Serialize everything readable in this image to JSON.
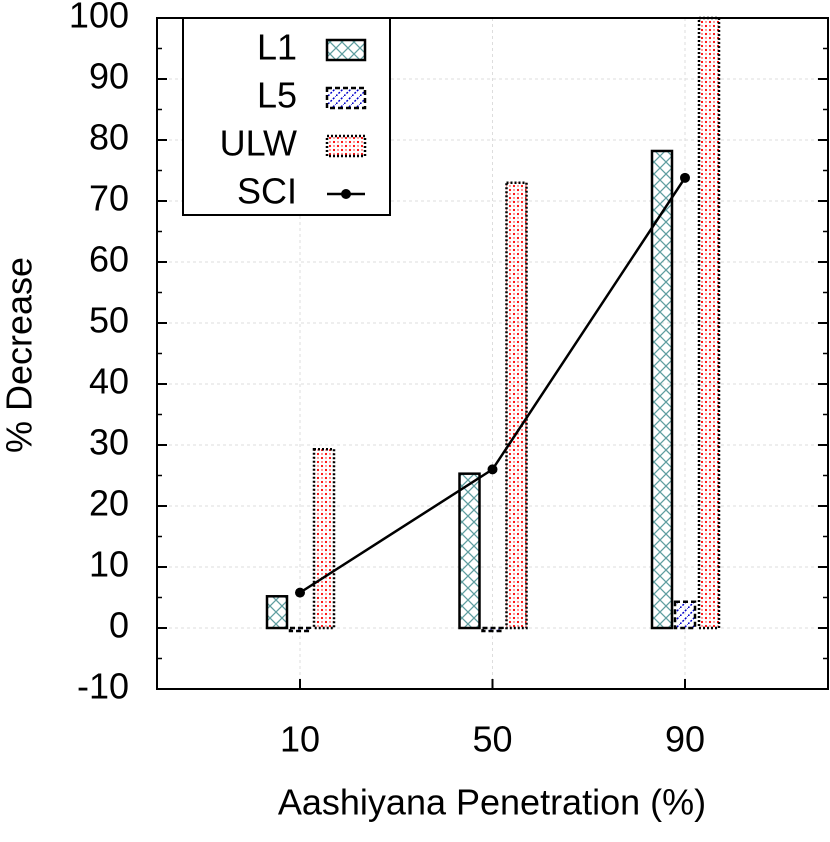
{
  "chart_data": {
    "type": "bar",
    "x_label": "Aashiyana Penetration (%)",
    "y_label": "% Decrease",
    "categories": [
      "10",
      "50",
      "90"
    ],
    "series": [
      {
        "name": "L1",
        "color": "#5f9ea0",
        "values": [
          5.2,
          25.3,
          78.2
        ]
      },
      {
        "name": "L5",
        "color": "#0000cc",
        "values": [
          -0.5,
          -0.5,
          4.3
        ]
      },
      {
        "name": "ULW",
        "color": "#ff0000",
        "values": [
          29.3,
          73,
          100
        ]
      },
      {
        "name": "SCI",
        "type": "line",
        "color": "#000000",
        "values": [
          5.8,
          26,
          73.8
        ]
      }
    ],
    "ylim": [
      -10,
      100
    ],
    "yticks": [
      -10,
      0,
      10,
      20,
      30,
      40,
      50,
      60,
      70,
      80,
      90,
      100
    ],
    "grid": true,
    "legend": "upper left"
  }
}
